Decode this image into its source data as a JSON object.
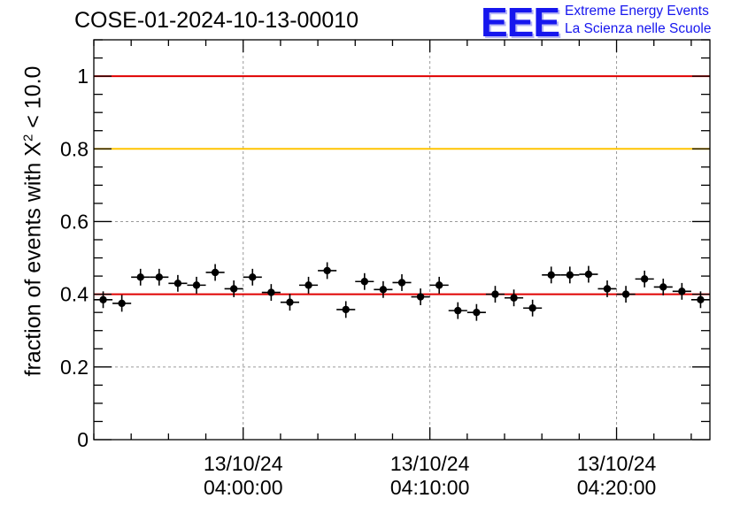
{
  "header": {
    "title": "COSE-01-2024-10-13-00010"
  },
  "logo": {
    "mark": "EEE",
    "line1": "Extreme Energy Events",
    "line2": "La Scienza nelle Scuole"
  },
  "chart_data": {
    "type": "scatter",
    "title": "COSE-01-2024-10-13-00010",
    "ylabel_parts": {
      "prefix": "fraction of events with ",
      "symbol": "X",
      "exponent": "2",
      "suffix": " < 10.0"
    },
    "xlim": [
      "13/10/24 03:52:00",
      "13/10/24 04:25:00"
    ],
    "ylim": [
      0,
      1.1
    ],
    "yticks": [
      "0",
      "0.2",
      "0.4",
      "0.6",
      "0.8",
      "1"
    ],
    "yticks_values": [
      0,
      0.2,
      0.4,
      0.6,
      0.8,
      1.0
    ],
    "xticks": [
      {
        "value": "13/10/24 04:00:00",
        "date": "13/10/24",
        "time": "04:00:00"
      },
      {
        "value": "13/10/24 04:10:00",
        "date": "13/10/24",
        "time": "04:10:00"
      },
      {
        "value": "13/10/24 04:20:00",
        "date": "13/10/24",
        "time": "04:20:00"
      }
    ],
    "grid": true,
    "reference_lines": [
      {
        "y": 1.0,
        "color": "#e00000"
      },
      {
        "y": 0.8,
        "color": "#ffc400"
      },
      {
        "y": 0.4,
        "color": "#e00000"
      }
    ],
    "points": [
      {
        "x": "13/10/24 03:52:30",
        "y": 0.385,
        "xerr_s": 30,
        "yerr": 0.023
      },
      {
        "x": "13/10/24 03:53:30",
        "y": 0.375,
        "xerr_s": 30,
        "yerr": 0.023
      },
      {
        "x": "13/10/24 03:54:30",
        "y": 0.447,
        "xerr_s": 30,
        "yerr": 0.023
      },
      {
        "x": "13/10/24 03:55:30",
        "y": 0.447,
        "xerr_s": 30,
        "yerr": 0.023
      },
      {
        "x": "13/10/24 03:56:30",
        "y": 0.43,
        "xerr_s": 30,
        "yerr": 0.023
      },
      {
        "x": "13/10/24 03:57:30",
        "y": 0.425,
        "xerr_s": 30,
        "yerr": 0.023
      },
      {
        "x": "13/10/24 03:58:30",
        "y": 0.46,
        "xerr_s": 30,
        "yerr": 0.023
      },
      {
        "x": "13/10/24 03:59:30",
        "y": 0.415,
        "xerr_s": 30,
        "yerr": 0.023
      },
      {
        "x": "13/10/24 04:00:30",
        "y": 0.447,
        "xerr_s": 30,
        "yerr": 0.023
      },
      {
        "x": "13/10/24 04:01:30",
        "y": 0.405,
        "xerr_s": 30,
        "yerr": 0.023
      },
      {
        "x": "13/10/24 04:02:30",
        "y": 0.378,
        "xerr_s": 30,
        "yerr": 0.023
      },
      {
        "x": "13/10/24 04:03:30",
        "y": 0.425,
        "xerr_s": 30,
        "yerr": 0.023
      },
      {
        "x": "13/10/24 04:04:30",
        "y": 0.465,
        "xerr_s": 30,
        "yerr": 0.023
      },
      {
        "x": "13/10/24 04:05:30",
        "y": 0.358,
        "xerr_s": 30,
        "yerr": 0.023
      },
      {
        "x": "13/10/24 04:06:30",
        "y": 0.435,
        "xerr_s": 30,
        "yerr": 0.023
      },
      {
        "x": "13/10/24 04:07:30",
        "y": 0.413,
        "xerr_s": 30,
        "yerr": 0.023
      },
      {
        "x": "13/10/24 04:08:30",
        "y": 0.432,
        "xerr_s": 30,
        "yerr": 0.023
      },
      {
        "x": "13/10/24 04:09:30",
        "y": 0.393,
        "xerr_s": 30,
        "yerr": 0.023
      },
      {
        "x": "13/10/24 04:10:30",
        "y": 0.425,
        "xerr_s": 30,
        "yerr": 0.023
      },
      {
        "x": "13/10/24 04:11:30",
        "y": 0.355,
        "xerr_s": 30,
        "yerr": 0.023
      },
      {
        "x": "13/10/24 04:12:30",
        "y": 0.35,
        "xerr_s": 30,
        "yerr": 0.023
      },
      {
        "x": "13/10/24 04:13:30",
        "y": 0.4,
        "xerr_s": 30,
        "yerr": 0.023
      },
      {
        "x": "13/10/24 04:14:30",
        "y": 0.39,
        "xerr_s": 30,
        "yerr": 0.023
      },
      {
        "x": "13/10/24 04:15:30",
        "y": 0.362,
        "xerr_s": 30,
        "yerr": 0.023
      },
      {
        "x": "13/10/24 04:16:30",
        "y": 0.453,
        "xerr_s": 30,
        "yerr": 0.023
      },
      {
        "x": "13/10/24 04:17:30",
        "y": 0.453,
        "xerr_s": 30,
        "yerr": 0.023
      },
      {
        "x": "13/10/24 04:18:30",
        "y": 0.455,
        "xerr_s": 30,
        "yerr": 0.023
      },
      {
        "x": "13/10/24 04:19:30",
        "y": 0.415,
        "xerr_s": 30,
        "yerr": 0.023
      },
      {
        "x": "13/10/24 04:20:30",
        "y": 0.4,
        "xerr_s": 30,
        "yerr": 0.023
      },
      {
        "x": "13/10/24 04:21:30",
        "y": 0.442,
        "xerr_s": 30,
        "yerr": 0.023
      },
      {
        "x": "13/10/24 04:22:30",
        "y": 0.42,
        "xerr_s": 30,
        "yerr": 0.023
      },
      {
        "x": "13/10/24 04:23:30",
        "y": 0.408,
        "xerr_s": 30,
        "yerr": 0.023
      },
      {
        "x": "13/10/24 04:24:30",
        "y": 0.385,
        "xerr_s": 30,
        "yerr": 0.023
      }
    ]
  }
}
